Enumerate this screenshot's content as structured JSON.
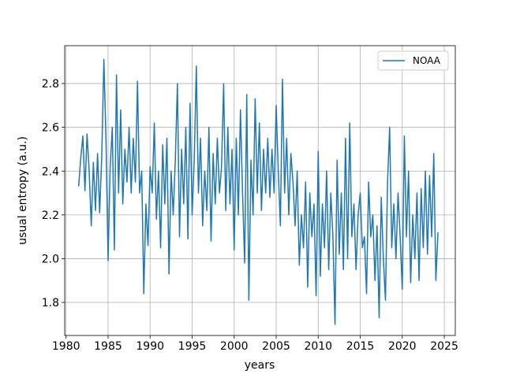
{
  "chart_data": {
    "type": "line",
    "xlabel": "years",
    "ylabel": "usual entropy (a.u.)",
    "x": [
      1981.5,
      1981.75,
      1982,
      1982.25,
      1982.5,
      1982.75,
      1983,
      1983.25,
      1983.5,
      1983.75,
      1984,
      1984.25,
      1984.5,
      1984.75,
      1985,
      1985.25,
      1985.5,
      1985.75,
      1986,
      1986.25,
      1986.5,
      1986.75,
      1987,
      1987.25,
      1987.5,
      1987.75,
      1988,
      1988.25,
      1988.5,
      1988.75,
      1989,
      1989.25,
      1989.5,
      1989.75,
      1990,
      1990.25,
      1990.5,
      1990.75,
      1991,
      1991.25,
      1991.5,
      1991.75,
      1992,
      1992.25,
      1992.5,
      1992.75,
      1993,
      1993.25,
      1993.5,
      1993.75,
      1994,
      1994.25,
      1994.5,
      1994.75,
      1995,
      1995.25,
      1995.5,
      1995.75,
      1996,
      1996.25,
      1996.5,
      1996.75,
      1997,
      1997.25,
      1997.5,
      1997.75,
      1998,
      1998.25,
      1998.5,
      1998.75,
      1999,
      1999.25,
      1999.5,
      1999.75,
      2000,
      2000.25,
      2000.5,
      2000.75,
      2001,
      2001.25,
      2001.5,
      2001.75,
      2002,
      2002.25,
      2002.5,
      2002.75,
      2003,
      2003.25,
      2003.5,
      2003.75,
      2004,
      2004.25,
      2004.5,
      2004.75,
      2005,
      2005.25,
      2005.5,
      2005.75,
      2006,
      2006.25,
      2006.5,
      2006.75,
      2007,
      2007.25,
      2007.5,
      2007.75,
      2008,
      2008.25,
      2008.5,
      2008.75,
      2009,
      2009.25,
      2009.5,
      2009.75,
      2010,
      2010.25,
      2010.5,
      2010.75,
      2011,
      2011.25,
      2011.5,
      2011.75,
      2012,
      2012.25,
      2012.5,
      2012.75,
      2013,
      2013.25,
      2013.5,
      2013.75,
      2014,
      2014.25,
      2014.5,
      2014.75,
      2015,
      2015.25,
      2015.5,
      2015.75,
      2016,
      2016.25,
      2016.5,
      2016.75,
      2017,
      2017.25,
      2017.5,
      2017.75,
      2018,
      2018.25,
      2018.5,
      2018.75,
      2019,
      2019.25,
      2019.5,
      2019.75,
      2020,
      2020.25,
      2020.5,
      2020.75,
      2021,
      2021.25,
      2021.5,
      2021.75,
      2022,
      2022.25,
      2022.5,
      2022.75,
      2023,
      2023.25,
      2023.5,
      2023.75,
      2024,
      2024.25
    ],
    "series": [
      {
        "name": "NOAA",
        "color": "#1f77b4",
        "values": [
          2.33,
          2.46,
          2.56,
          2.31,
          2.57,
          2.4,
          2.15,
          2.44,
          2.22,
          2.48,
          2.21,
          2.47,
          2.91,
          2.55,
          1.99,
          2.42,
          2.6,
          2.04,
          2.84,
          2.3,
          2.68,
          2.25,
          2.5,
          2.35,
          2.6,
          2.3,
          2.55,
          2.35,
          2.81,
          2.3,
          2.4,
          1.84,
          2.25,
          2.06,
          2.42,
          2.3,
          2.62,
          2.18,
          2.4,
          2.05,
          2.52,
          2.25,
          2.55,
          1.93,
          2.4,
          2.2,
          2.45,
          2.8,
          2.1,
          2.5,
          2.25,
          2.6,
          2.09,
          2.71,
          2.2,
          2.45,
          2.88,
          2.3,
          2.55,
          2.15,
          2.4,
          2.22,
          2.6,
          2.08,
          2.48,
          2.25,
          2.55,
          2.3,
          2.42,
          2.8,
          2.22,
          2.6,
          2.25,
          2.5,
          2.04,
          2.55,
          2.2,
          2.68,
          2.3,
          1.98,
          2.75,
          1.81,
          2.45,
          2.2,
          2.73,
          2.3,
          2.62,
          2.22,
          2.5,
          2.3,
          2.55,
          2.28,
          2.5,
          2.3,
          2.7,
          2.4,
          2.15,
          2.82,
          2.3,
          2.55,
          2.2,
          2.48,
          2.35,
          2.15,
          2.4,
          1.97,
          2.2,
          2.05,
          2.35,
          1.87,
          2.3,
          2.1,
          2.25,
          1.83,
          2.49,
          1.92,
          2.25,
          2.05,
          2.4,
          1.95,
          2.3,
          2.1,
          1.7,
          2.45,
          2.02,
          2.3,
          1.95,
          2.55,
          2.0,
          2.62,
          2.1,
          2.25,
          1.95,
          2.2,
          2.3,
          2.05,
          2.1,
          1.84,
          2.35,
          2.1,
          2.2,
          1.9,
          2.15,
          1.73,
          2.28,
          2.0,
          1.81,
          2.35,
          2.6,
          2.05,
          2.25,
          2.0,
          2.3,
          2.1,
          1.86,
          2.56,
          2.1,
          2.4,
          1.89,
          2.2,
          2.0,
          2.3,
          1.9,
          2.32,
          2.05,
          2.4,
          2.02,
          2.38,
          2.1,
          2.48,
          1.9,
          2.12
        ]
      }
    ],
    "xlim": [
      1979.84,
      2026.31
    ],
    "xticks": [
      1980,
      1985,
      1990,
      1995,
      2000,
      2005,
      2010,
      2015,
      2020,
      2025
    ],
    "ylim": [
      1.649,
      2.973
    ],
    "yticks": [
      1.8,
      {
        "value": 2,
        "label": "2.0"
      },
      2.2,
      2.4,
      2.6,
      2.8
    ],
    "grid": true,
    "legend": "upper-right"
  }
}
